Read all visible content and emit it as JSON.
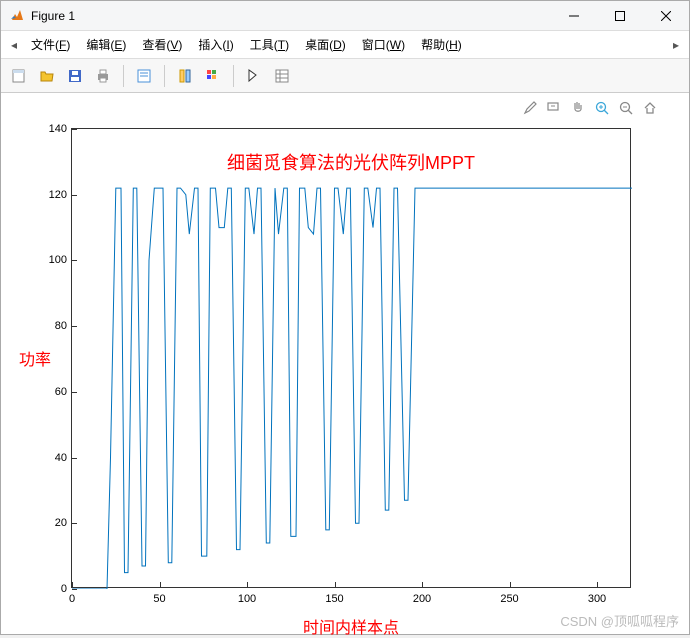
{
  "window": {
    "title": "Figure 1"
  },
  "menu": {
    "items": [
      {
        "label": "文件",
        "key": "F"
      },
      {
        "label": "编辑",
        "key": "E"
      },
      {
        "label": "查看",
        "key": "V"
      },
      {
        "label": "插入",
        "key": "I"
      },
      {
        "label": "工具",
        "key": "T"
      },
      {
        "label": "桌面",
        "key": "D"
      },
      {
        "label": "窗口",
        "key": "W"
      },
      {
        "label": "帮助",
        "key": "H"
      }
    ]
  },
  "chart": {
    "type": "line",
    "title": "细菌觅食算法的光伏阵列MPPT",
    "xlabel": "时间内样本点",
    "ylabel": "功率",
    "xlim": [
      0,
      320
    ],
    "ylim": [
      0,
      140
    ],
    "xticks": [
      0,
      50,
      100,
      150,
      200,
      250,
      300
    ],
    "yticks": [
      0,
      20,
      40,
      60,
      80,
      100,
      120,
      140
    ],
    "line_color": "#0072bd",
    "line_width": 1,
    "background_color": "#ffffff",
    "axis_color": "#333333",
    "label_color": "#ff0000",
    "tick_fontsize": 11,
    "label_fontsize": 16,
    "title_fontsize": 18,
    "series": {
      "x": [
        0,
        20,
        22,
        25,
        28,
        30,
        32,
        35,
        37,
        40,
        42,
        44,
        47,
        50,
        52,
        55,
        57,
        60,
        62,
        65,
        67,
        70,
        72,
        74,
        77,
        79,
        82,
        84,
        87,
        89,
        91,
        94,
        96,
        99,
        101,
        104,
        106,
        108,
        111,
        113,
        116,
        118,
        121,
        123,
        125,
        128,
        130,
        133,
        135,
        138,
        140,
        142,
        145,
        147,
        150,
        152,
        155,
        157,
        159,
        162,
        164,
        167,
        169,
        172,
        174,
        176,
        179,
        181,
        184,
        186,
        190,
        192,
        196,
        320
      ],
      "y": [
        0,
        0,
        40,
        122,
        122,
        5,
        5,
        122,
        122,
        7,
        7,
        100,
        122,
        122,
        122,
        8,
        8,
        122,
        122,
        120,
        108,
        122,
        122,
        10,
        10,
        122,
        122,
        110,
        110,
        122,
        122,
        12,
        12,
        122,
        122,
        108,
        122,
        122,
        14,
        14,
        122,
        108,
        122,
        122,
        16,
        16,
        122,
        122,
        110,
        108,
        122,
        122,
        18,
        18,
        122,
        122,
        108,
        122,
        122,
        20,
        20,
        122,
        122,
        110,
        122,
        122,
        24,
        24,
        122,
        122,
        27,
        27,
        122,
        122
      ]
    }
  },
  "watermark": "CSDN @顶呱呱程序"
}
